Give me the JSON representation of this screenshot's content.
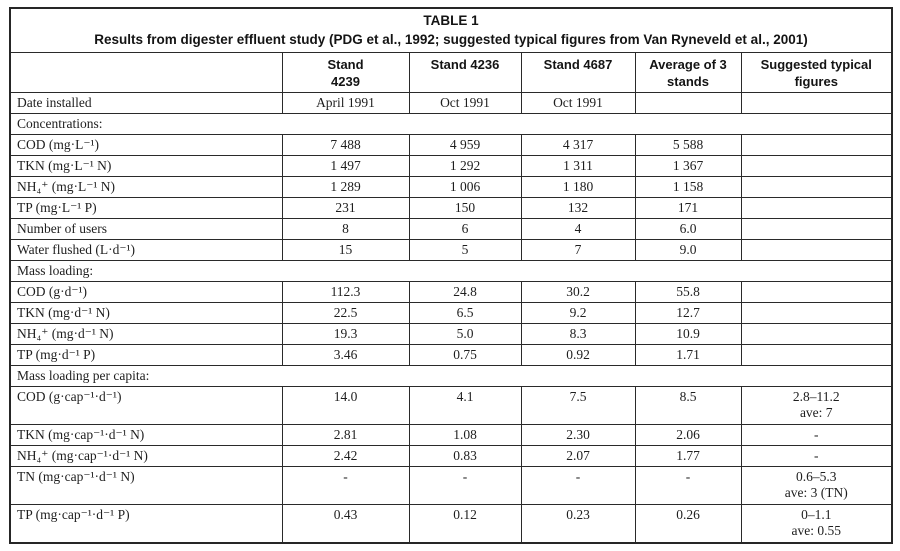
{
  "table": {
    "title": "TABLE 1",
    "subtitle": "Results from digester effluent study (PDG et al., 1992; suggested typical figures from Van Ryneveld et al., 2001)",
    "columns": [
      "",
      "Stand\n4239",
      "Stand 4236",
      "Stand 4687",
      "Average of 3\nstands",
      "Suggested typical\nfigures"
    ],
    "rows": [
      {
        "type": "data",
        "label": "Date installed",
        "values": [
          "April 1991",
          "Oct 1991",
          "Oct 1991",
          "",
          ""
        ]
      },
      {
        "type": "section",
        "label": "Concentrations:"
      },
      {
        "type": "data",
        "label": "COD (mg·L⁻¹)",
        "values": [
          "7 488",
          "4 959",
          "4 317",
          "5 588",
          ""
        ]
      },
      {
        "type": "data",
        "label": "TKN (mg·L⁻¹ N)",
        "values": [
          "1 497",
          "1 292",
          "1 311",
          "1 367",
          ""
        ]
      },
      {
        "type": "data",
        "label": "NH₄⁺ (mg·L⁻¹ N)",
        "values": [
          "1 289",
          "1 006",
          "1 180",
          "1 158",
          ""
        ]
      },
      {
        "type": "data",
        "label": "TP (mg·L⁻¹ P)",
        "values": [
          "231",
          "150",
          "132",
          "171",
          ""
        ]
      },
      {
        "type": "data",
        "label": "Number of users",
        "values": [
          "8",
          "6",
          "4",
          "6.0",
          ""
        ]
      },
      {
        "type": "data",
        "label": "Water flushed (L·d⁻¹)",
        "values": [
          "15",
          "5",
          "7",
          "9.0",
          ""
        ]
      },
      {
        "type": "section",
        "label": "Mass loading:"
      },
      {
        "type": "data",
        "label": "COD (g·d⁻¹)",
        "values": [
          "112.3",
          "24.8",
          "30.2",
          "55.8",
          ""
        ]
      },
      {
        "type": "data",
        "label": "TKN (mg·d⁻¹ N)",
        "values": [
          "22.5",
          "6.5",
          "9.2",
          "12.7",
          ""
        ]
      },
      {
        "type": "data",
        "label": "NH₄⁺ (mg·d⁻¹ N)",
        "values": [
          "19.3",
          "5.0",
          "8.3",
          "10.9",
          ""
        ]
      },
      {
        "type": "data",
        "label": "TP (mg·d⁻¹ P)",
        "values": [
          "3.46",
          "0.75",
          "0.92",
          "1.71",
          ""
        ]
      },
      {
        "type": "section",
        "label": "Mass loading per capita:"
      },
      {
        "type": "data",
        "label": "COD (g·cap⁻¹·d⁻¹)",
        "values": [
          "14.0",
          "4.1",
          "7.5",
          "8.5",
          "2.8–11.2\nave: 7"
        ]
      },
      {
        "type": "data",
        "label": "TKN (mg·cap⁻¹·d⁻¹ N)",
        "values": [
          "2.81",
          "1.08",
          "2.30",
          "2.06",
          "-"
        ]
      },
      {
        "type": "data",
        "label": "NH₄⁺ (mg·cap⁻¹·d⁻¹ N)",
        "values": [
          "2.42",
          "0.83",
          "2.07",
          "1.77",
          "-"
        ]
      },
      {
        "type": "data",
        "label": "TN (mg·cap⁻¹·d⁻¹ N)",
        "values": [
          "-",
          "-",
          "-",
          "-",
          "0.6–5.3\nave: 3 (TN)"
        ]
      },
      {
        "type": "data",
        "label": "TP (mg·cap⁻¹·d⁻¹ P)",
        "values": [
          "0.43",
          "0.12",
          "0.23",
          "0.26",
          "0–1.1\nave: 0.55"
        ]
      }
    ]
  }
}
